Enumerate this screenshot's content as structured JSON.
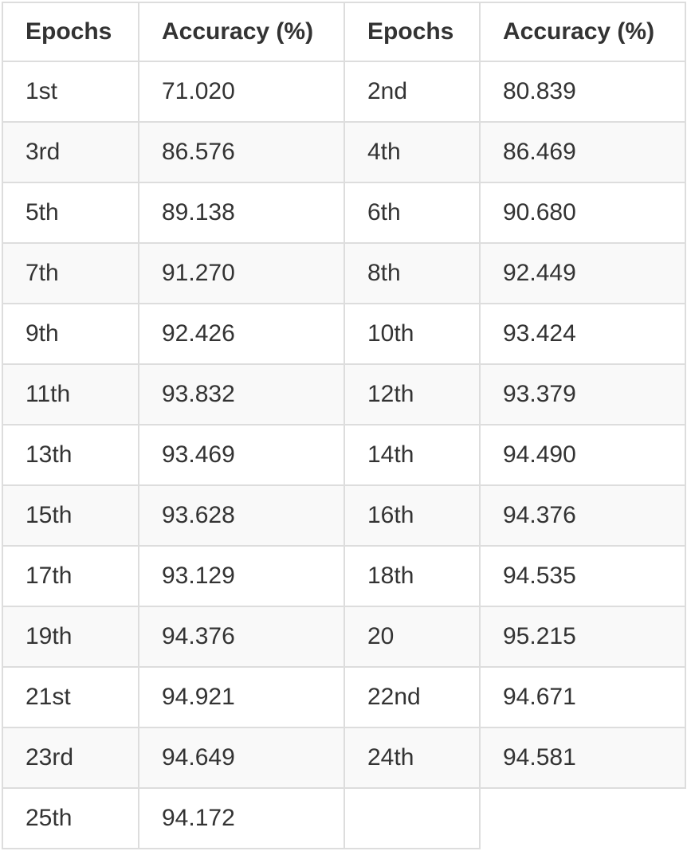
{
  "table": {
    "headers": [
      "Epochs",
      "Accuracy (%)",
      "Epochs",
      "Accuracy (%)"
    ],
    "rows": [
      [
        "1st",
        "71.020",
        "2nd",
        "80.839"
      ],
      [
        "3rd",
        "86.576",
        "4th",
        "86.469"
      ],
      [
        "5th",
        "89.138",
        "6th",
        "90.680"
      ],
      [
        "7th",
        "91.270",
        "8th",
        "92.449"
      ],
      [
        "9th",
        "92.426",
        "10th",
        "93.424"
      ],
      [
        "11th",
        "93.832",
        "12th",
        "93.379"
      ],
      [
        "13th",
        "93.469",
        "14th",
        "94.490"
      ],
      [
        "15th",
        "93.628",
        "16th",
        "94.376"
      ],
      [
        "17th",
        "93.129",
        "18th",
        "94.535"
      ],
      [
        "19th",
        "94.376",
        "20",
        "95.215"
      ],
      [
        "21st",
        "94.921",
        "22nd",
        "94.671"
      ],
      [
        "23rd",
        "94.649",
        "24th",
        "94.581"
      ],
      [
        "25th",
        "94.172",
        "",
        ""
      ]
    ]
  },
  "colors": {
    "border": "#dddddd",
    "stripe": "#f9f9f9",
    "text": "#333333"
  }
}
